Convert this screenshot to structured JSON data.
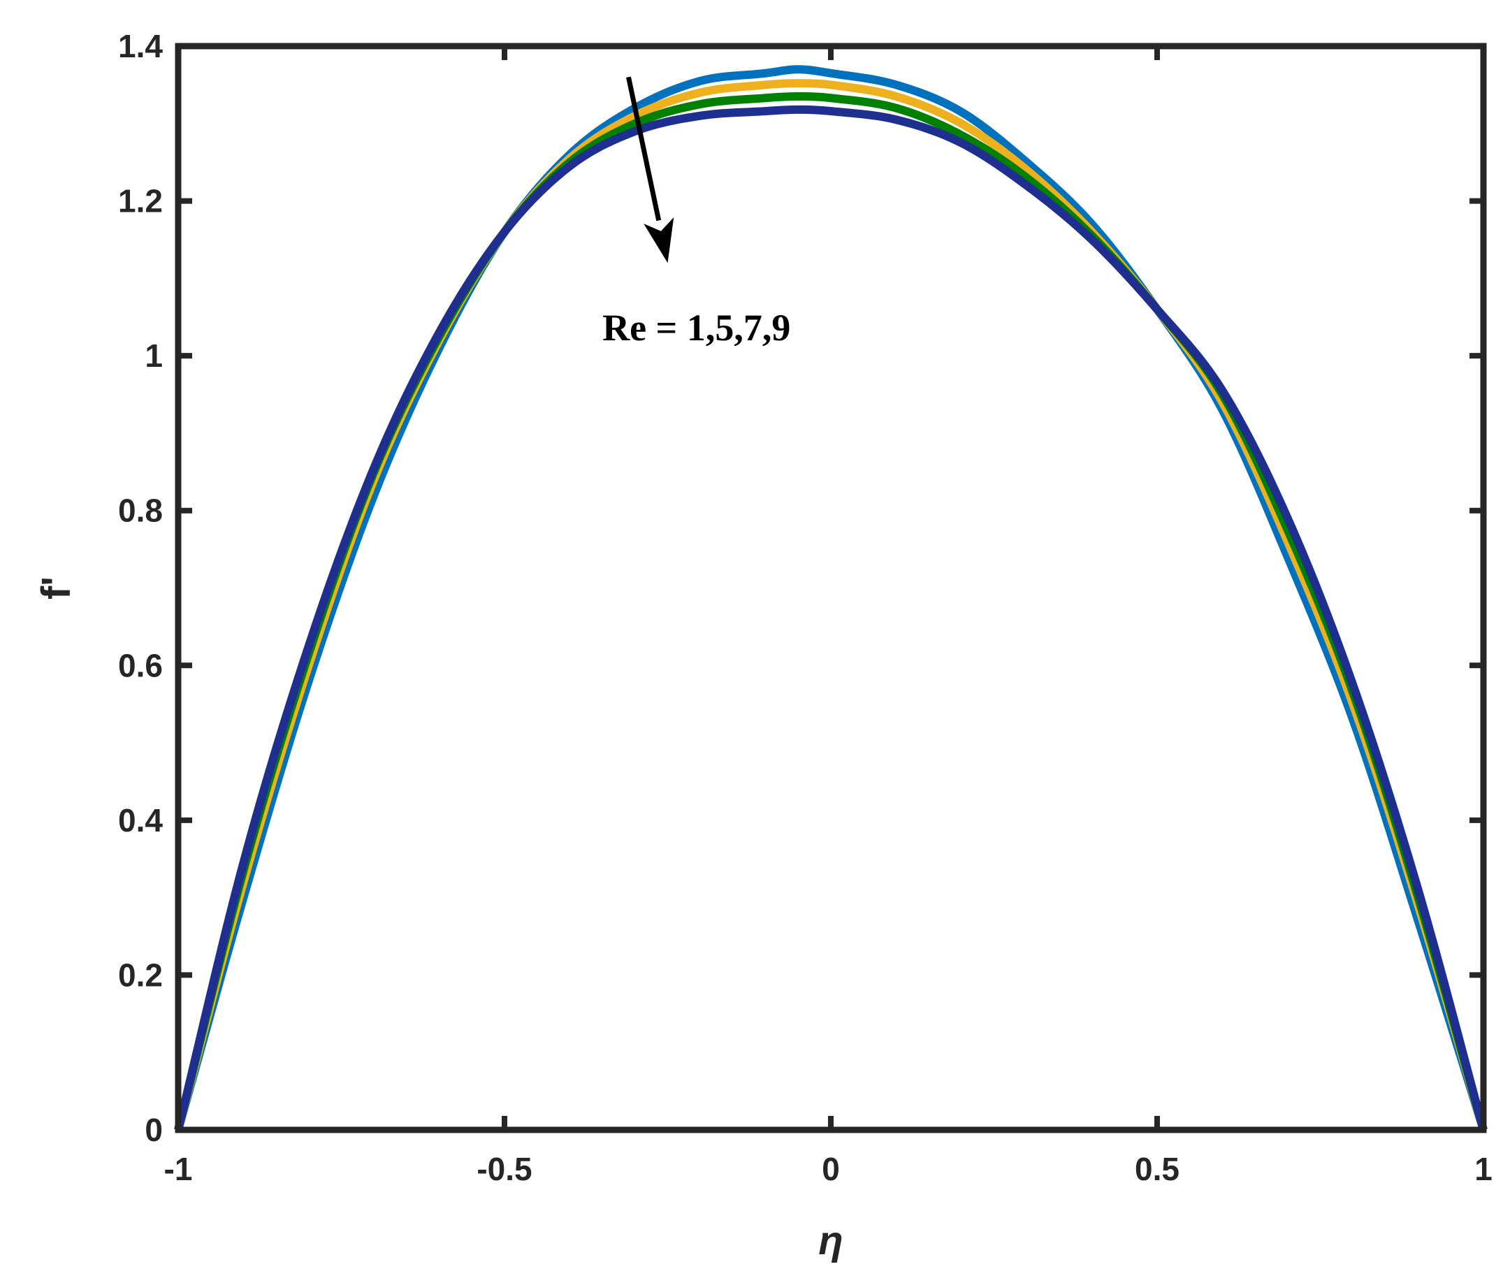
{
  "chart_data": {
    "type": "line",
    "title": "",
    "xlabel": "η",
    "ylabel": "f'",
    "xlim": [
      -1,
      1
    ],
    "ylim": [
      0,
      1.4
    ],
    "xticks": [
      -1,
      -0.5,
      0,
      0.5,
      1
    ],
    "xtick_labels": [
      "-1",
      "-0.5",
      "0",
      "0.5",
      "1"
    ],
    "yticks": [
      0,
      0.2,
      0.4,
      0.6,
      0.8,
      1,
      1.2,
      1.4
    ],
    "ytick_labels": [
      "0",
      "0.2",
      "0.4",
      "0.6",
      "0.8",
      "1",
      "1.2",
      "1.4"
    ],
    "grid": false,
    "legend": "none",
    "annotation": {
      "text": "Re = 1,5,7,9",
      "arrow_from": [
        -0.31,
        1.36
      ],
      "arrow_to": [
        -0.25,
        1.12
      ],
      "text_anchor": [
        -0.35,
        1.02
      ]
    },
    "series": [
      {
        "color": "#0072BD",
        "x": [
          -1,
          -0.9,
          -0.8,
          -0.7,
          -0.6,
          -0.5,
          -0.4,
          -0.3,
          -0.2,
          -0.1,
          -0.05,
          0,
          0.1,
          0.2,
          0.3,
          0.4,
          0.5,
          0.6,
          0.7,
          0.8,
          0.9,
          1
        ],
        "y": [
          0,
          0.3,
          0.58,
          0.82,
          1.01,
          1.16,
          1.26,
          1.32,
          1.355,
          1.365,
          1.37,
          1.365,
          1.35,
          1.315,
          1.25,
          1.17,
          1.06,
          0.93,
          0.74,
          0.53,
          0.27,
          0
        ]
      },
      {
        "color": "#EDB120",
        "x": [
          -1,
          -0.9,
          -0.8,
          -0.7,
          -0.6,
          -0.5,
          -0.4,
          -0.3,
          -0.2,
          -0.1,
          -0.05,
          0,
          0.1,
          0.2,
          0.3,
          0.4,
          0.5,
          0.6,
          0.7,
          0.8,
          0.9,
          1
        ],
        "y": [
          0,
          0.32,
          0.6,
          0.84,
          1.02,
          1.16,
          1.255,
          1.31,
          1.34,
          1.35,
          1.352,
          1.35,
          1.335,
          1.3,
          1.24,
          1.16,
          1.06,
          0.94,
          0.76,
          0.55,
          0.29,
          0
        ]
      },
      {
        "color": "#008000",
        "x": [
          -1,
          -0.9,
          -0.8,
          -0.7,
          -0.6,
          -0.5,
          -0.4,
          -0.3,
          -0.2,
          -0.1,
          -0.05,
          0,
          0.1,
          0.2,
          0.3,
          0.4,
          0.5,
          0.6,
          0.7,
          0.8,
          0.9,
          1
        ],
        "y": [
          0,
          0.335,
          0.615,
          0.85,
          1.025,
          1.16,
          1.25,
          1.3,
          1.325,
          1.333,
          1.335,
          1.333,
          1.32,
          1.285,
          1.23,
          1.155,
          1.06,
          0.95,
          0.775,
          0.565,
          0.3,
          0
        ]
      },
      {
        "color": "#1F2F8F",
        "x": [
          -1,
          -0.9,
          -0.8,
          -0.7,
          -0.6,
          -0.5,
          -0.4,
          -0.3,
          -0.2,
          -0.1,
          -0.05,
          0,
          0.1,
          0.2,
          0.3,
          0.4,
          0.5,
          0.6,
          0.7,
          0.8,
          0.9,
          1
        ],
        "y": [
          0,
          0.345,
          0.625,
          0.855,
          1.03,
          1.16,
          1.245,
          1.29,
          1.31,
          1.316,
          1.318,
          1.316,
          1.305,
          1.275,
          1.22,
          1.15,
          1.06,
          0.955,
          0.79,
          0.575,
          0.31,
          0
        ]
      }
    ]
  }
}
